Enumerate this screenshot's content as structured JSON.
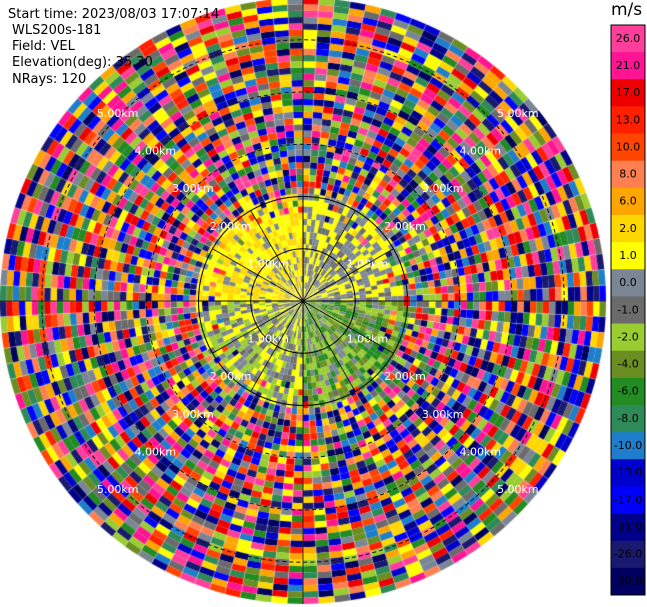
{
  "header": {
    "start_time": "Start time: 2023/08/03 17:07:14",
    "instrument": "WLS200s-181",
    "field": "Field: VEL",
    "elevation": "Elevation(deg): 35.30",
    "nrays": "NRays: 120"
  },
  "chart_data": {
    "type": "ppi",
    "field": "VEL",
    "units": "m/s",
    "nrays": 120,
    "elevation_deg": 35.3,
    "range_rings_km": [
      1.0,
      2.0,
      3.0,
      4.0,
      5.0
    ],
    "range_ring_labels": [
      "1.00km",
      "2.00km",
      "3.00km",
      "4.00km",
      "5.00km"
    ],
    "max_range_km": 5.8,
    "azimuth_lines_deg": [
      0,
      30,
      60,
      90,
      120,
      150,
      180,
      210,
      240,
      270,
      300,
      330
    ],
    "colorbar": {
      "units_label": "m/s",
      "ticks": [
        "26.0",
        "21.0",
        "17.0",
        "13.0",
        "10.0",
        "8.0",
        "6.0",
        "2.0",
        "1.0",
        "0.0",
        "-1.0",
        "-2.0",
        "-4.0",
        "-6.0",
        "-8.0",
        "-10.0",
        "-13.0",
        "-17.0",
        "-21.0",
        "-26.0",
        "-30.0"
      ],
      "colors": [
        "#ff3f9b",
        "#ff1493",
        "#ee0000",
        "#ff2000",
        "#ff4500",
        "#ff7f50",
        "#ffa500",
        "#ffd700",
        "#ffff00",
        "#7b8694",
        "#6b6b6b",
        "#9acd32",
        "#6b8e23",
        "#228b22",
        "#2e8b57",
        "#1e7ecb",
        "#0000cd",
        "#0000ff",
        "#00008b",
        "#191970",
        "#000060"
      ]
    },
    "regions": [
      {
        "range_km": [
          0,
          2.0
        ],
        "azimuth_deg": [
          270,
          360
        ],
        "dominant": [
          "#ffff00",
          "#ffd700"
        ],
        "gaps": "#7b8694"
      },
      {
        "range_km": [
          0,
          2.0
        ],
        "azimuth_deg": [
          0,
          90
        ],
        "dominant": [
          "#ffff00",
          "#7b8694"
        ],
        "gaps": "#6b6b6b"
      },
      {
        "range_km": [
          0,
          2.0
        ],
        "azimuth_deg": [
          90,
          180
        ],
        "dominant": [
          "#9acd32",
          "#6b8e23",
          "#228b22"
        ],
        "gaps": "#7b8694"
      },
      {
        "range_km": [
          0,
          2.0
        ],
        "azimuth_deg": [
          180,
          270
        ],
        "dominant": [
          "#ffff00",
          "#9acd32",
          "#7b8694"
        ],
        "gaps": "#6b6b6b"
      },
      {
        "range_km": [
          2.0,
          5.8
        ],
        "azimuth_deg": [
          0,
          360
        ],
        "dominant": "noise (all colors)"
      }
    ]
  }
}
